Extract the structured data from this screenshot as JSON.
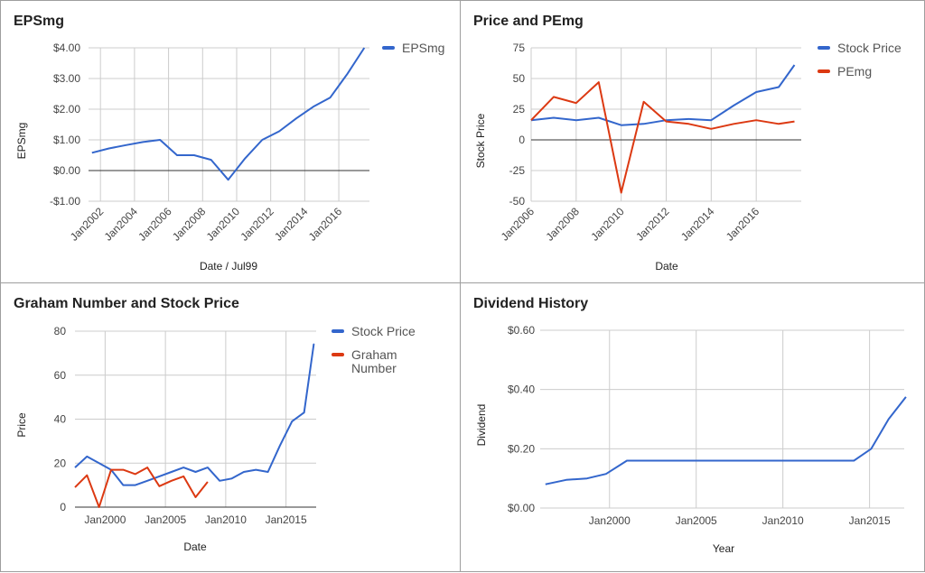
{
  "charts": {
    "eps": {
      "title": "EPSmg",
      "chart_data": {
        "type": "line",
        "title": "EPSmg",
        "xlabel": "Date / Jul99",
        "ylabel": "EPSmg",
        "xlim": [
          2001.3,
          2017.8
        ],
        "ylim": [
          -1,
          4
        ],
        "y_ticks": [
          -1,
          0,
          1,
          2,
          3,
          4
        ],
        "y_tick_labels": [
          "-$1.00",
          "$0.00",
          "$1.00",
          "$2.00",
          "$3.00",
          "$4.00"
        ],
        "x_ticks": [
          2002,
          2004,
          2006,
          2008,
          2010,
          2012,
          2014,
          2016
        ],
        "x_tick_labels": [
          "Jan2002",
          "Jan2004",
          "Jan2006",
          "Jan2008",
          "Jan2010",
          "Jan2012",
          "Jan2014",
          "Jan2016"
        ],
        "x_tick_rotation": -45,
        "zero_line": true,
        "grid": true,
        "legend": "right",
        "series": [
          {
            "name": "EPSmg",
            "color": "#3366cc",
            "x": [
              2001.5,
              2002.5,
              2003.5,
              2004.5,
              2005.5,
              2006.5,
              2007.5,
              2008.5,
              2009.5,
              2010.5,
              2011.5,
              2012.5,
              2013.5,
              2014.5,
              2015.5,
              2016.5,
              2017.5
            ],
            "y": [
              0.58,
              0.72,
              0.83,
              0.93,
              1.0,
              0.5,
              0.5,
              0.35,
              -0.3,
              0.4,
              1.0,
              1.28,
              1.7,
              2.08,
              2.38,
              3.15,
              4.0
            ]
          }
        ]
      }
    },
    "pe": {
      "title": "Price and PEmg",
      "chart_data": {
        "type": "line",
        "title": "Price and PEmg",
        "xlabel": "Date",
        "ylabel": "Stock Price",
        "xlim": [
          2006,
          2018
        ],
        "ylim": [
          -50,
          75
        ],
        "y_ticks": [
          -50,
          -25,
          0,
          25,
          50,
          75
        ],
        "y_tick_labels": [
          "-50",
          "-25",
          "0",
          "25",
          "50",
          "75"
        ],
        "x_ticks": [
          2006,
          2008,
          2010,
          2012,
          2014,
          2016
        ],
        "x_tick_labels": [
          "Jan2006",
          "Jan2008",
          "Jan2010",
          "Jan2012",
          "Jan2014",
          "Jan2016"
        ],
        "x_tick_rotation": -45,
        "zero_line": true,
        "grid": true,
        "legend": "right",
        "series": [
          {
            "name": "Stock Price",
            "color": "#3366cc",
            "x": [
              2006.0,
              2007.0,
              2008.0,
              2009.0,
              2010.0,
              2011.0,
              2012.0,
              2013.0,
              2014.0,
              2015.0,
              2016.0,
              2017.0,
              2017.7
            ],
            "y": [
              16,
              18,
              16,
              18,
              12,
              13,
              16,
              17,
              16,
              28,
              39,
              43,
              61
            ]
          },
          {
            "name": "PEmg",
            "color": "#dc3912",
            "x": [
              2006.0,
              2007.0,
              2008.0,
              2009.0,
              2010.0,
              2011.0,
              2012.0,
              2013.0,
              2014.0,
              2015.0,
              2016.0,
              2017.0,
              2017.7
            ],
            "y": [
              16,
              35,
              30,
              47,
              -43,
              31,
              15,
              13,
              9,
              13,
              16,
              13,
              15
            ]
          }
        ]
      }
    },
    "graham": {
      "title": "Graham Number and Stock Price",
      "chart_data": {
        "type": "line",
        "title": "Graham Number and Stock Price",
        "xlabel": "Date",
        "ylabel": "Price",
        "xlim": [
          1997.5,
          2017.5
        ],
        "ylim": [
          0,
          80
        ],
        "y_ticks": [
          0,
          20,
          40,
          60,
          80
        ],
        "y_tick_labels": [
          "0",
          "20",
          "40",
          "60",
          "80"
        ],
        "x_ticks": [
          2000,
          2005,
          2010,
          2015
        ],
        "x_tick_labels": [
          "Jan2000",
          "Jan2005",
          "Jan2010",
          "Jan2015"
        ],
        "x_tick_rotation": 0,
        "zero_line": true,
        "grid": true,
        "legend": "right",
        "series": [
          {
            "name": "Stock Price",
            "color": "#3366cc",
            "x": [
              1997.5,
              1998.5,
              1999.5,
              2000.5,
              2001.5,
              2002.5,
              2003.5,
              2004.5,
              2005.5,
              2006.5,
              2007.5,
              2008.5,
              2009.5,
              2010.5,
              2011.5,
              2012.5,
              2013.5,
              2014.5,
              2015.5,
              2016.5
            ],
            "y": [
              18,
              23,
              20,
              17,
              10,
              10,
              12,
              14,
              16,
              18,
              16,
              18,
              12,
              13,
              16,
              17,
              16,
              28,
              39,
              43
            ]
          },
          {
            "name": "Graham Number",
            "color": "#dc3912",
            "x": [
              1997.5,
              1998.5,
              1999.5,
              2000.5,
              2001.5,
              2002.5,
              2003.5,
              2004.5,
              2005.5,
              2006.5,
              2007.5,
              2008.5
            ],
            "y": [
              9,
              14.5,
              0,
              17,
              17,
              15,
              18,
              9.5,
              12,
              14,
              4.5,
              11.5
            ]
          }
        ],
        "stock_price_last": {
          "x": 2017.3,
          "y": 74
        }
      }
    },
    "dividend": {
      "title": "Dividend History",
      "chart_data": {
        "type": "line",
        "title": "Dividend History",
        "xlabel": "Year",
        "ylabel": "Dividend",
        "xlim": [
          1996,
          2017
        ],
        "ylim": [
          0,
          0.6
        ],
        "y_ticks": [
          0,
          0.2,
          0.4,
          0.6
        ],
        "y_tick_labels": [
          "$0.00",
          "$0.20",
          "$0.40",
          "$0.60"
        ],
        "x_ticks": [
          2000,
          2005,
          2010,
          2015
        ],
        "x_tick_labels": [
          "Jan2000",
          "Jan2005",
          "Jan2010",
          "Jan2015"
        ],
        "x_tick_rotation": 0,
        "zero_line": false,
        "grid": true,
        "legend": "none",
        "series": [
          {
            "name": "",
            "color": "#3366cc",
            "x": [
              1996.3,
              1997.5,
              1998.7,
              1999.8,
              2001.0,
              2005.0,
              2010.0,
              2013.0,
              2014.1,
              2015.1,
              2016.1,
              2017.1
            ],
            "y": [
              0.08,
              0.095,
              0.1,
              0.115,
              0.16,
              0.16,
              0.16,
              0.16,
              0.16,
              0.2,
              0.3,
              0.375
            ]
          }
        ]
      }
    }
  }
}
